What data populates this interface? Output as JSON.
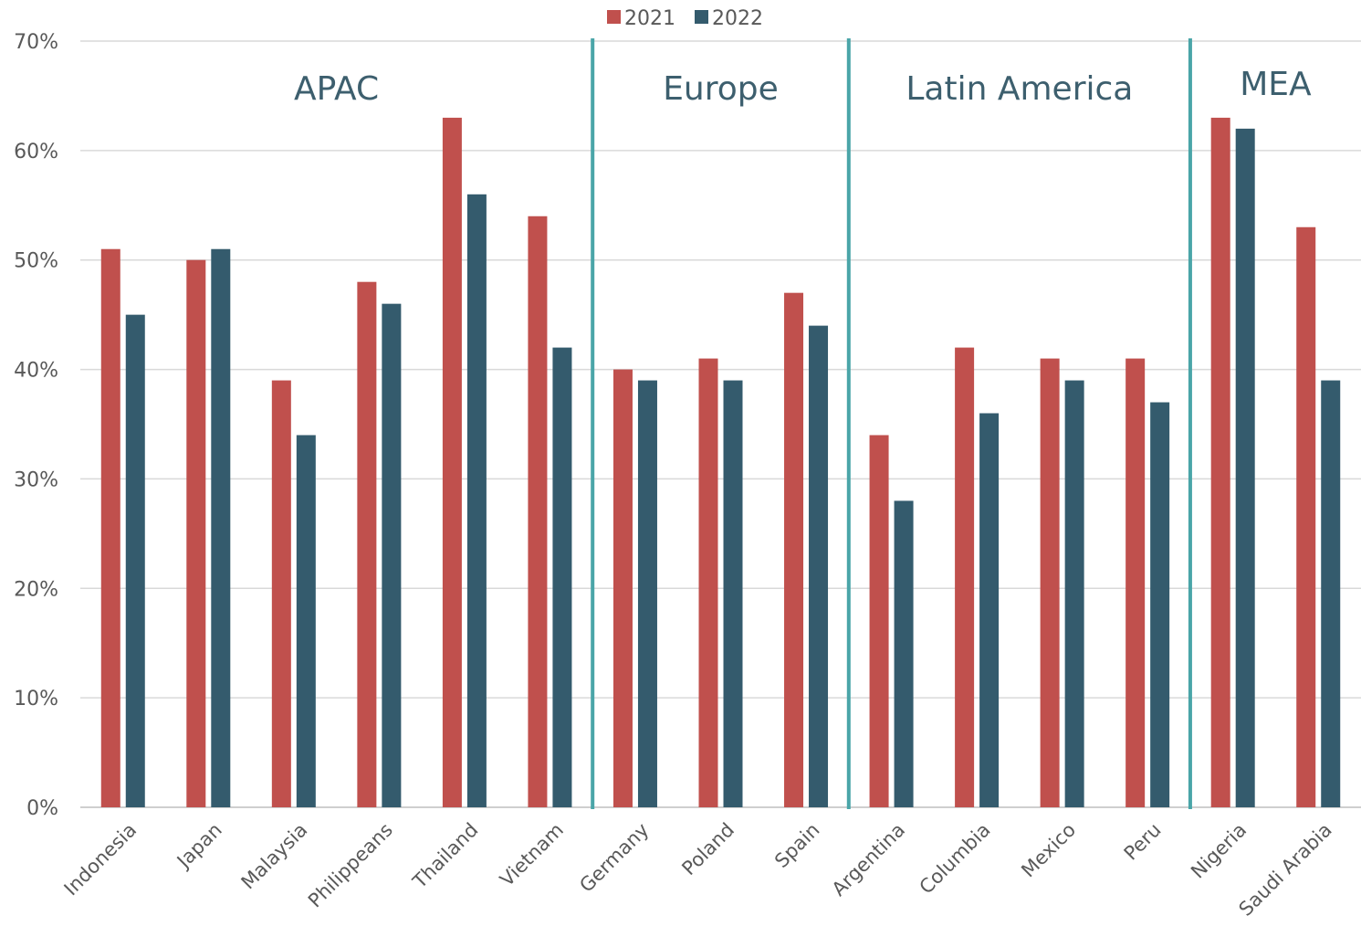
{
  "chart_data": {
    "type": "bar",
    "categories": [
      "Indonesia",
      "Japan",
      "Malaysia",
      "Philippeans",
      "Thailand",
      "Vietnam",
      "Germany",
      "Poland",
      "Spain",
      "Argentina",
      "Columbia",
      "Mexico",
      "Peru",
      "Nigeria",
      "Saudi Arabia"
    ],
    "series": [
      {
        "name": "2021",
        "color": "#c0504d",
        "values": [
          51,
          50,
          39,
          48,
          63,
          54,
          40,
          41,
          47,
          34,
          42,
          41,
          41,
          63,
          53
        ]
      },
      {
        "name": "2022",
        "color": "#345b6d",
        "values": [
          45,
          51,
          34,
          46,
          56,
          42,
          39,
          39,
          44,
          28,
          36,
          39,
          37,
          62,
          39
        ]
      }
    ],
    "ylim": [
      0,
      70
    ],
    "y_ticks": [
      "0%",
      "10%",
      "20%",
      "30%",
      "40%",
      "50%",
      "60%",
      "70%"
    ],
    "legend_position": "top-center",
    "grid": true,
    "regions": [
      {
        "label": "APAC",
        "start": 0,
        "end": 5
      },
      {
        "label": "Europe",
        "start": 6,
        "end": 8
      },
      {
        "label": "Latin America",
        "start": 9,
        "end": 12
      },
      {
        "label": "MEA",
        "start": 13,
        "end": 14
      }
    ],
    "divider_color": "#4aa5a8"
  }
}
